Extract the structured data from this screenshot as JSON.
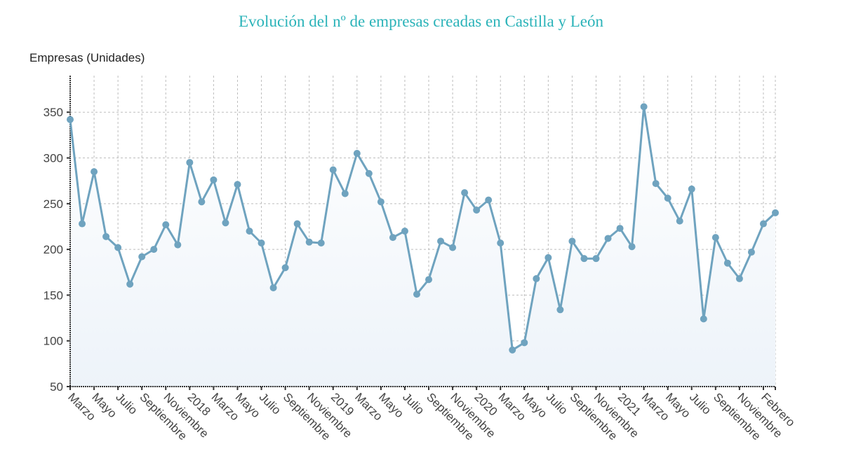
{
  "chart_data": {
    "type": "line",
    "title": "Evolución del nº de empresas creadas en Castilla y León",
    "ylabel": "Empresas (Unidades)",
    "xlabel": "",
    "ylim": [
      50,
      390
    ],
    "yticks": [
      50,
      100,
      150,
      200,
      250,
      300,
      350
    ],
    "grid": true,
    "legend": "none",
    "x_tick_labels": [
      "Marzo",
      "Mayo",
      "Julio",
      "Septiembre",
      "Noviembre",
      "2018",
      "Marzo",
      "Mayo",
      "Julio",
      "Septiembre",
      "Noviembre",
      "2019",
      "Marzo",
      "Mayo",
      "Julio",
      "Septiembre",
      "Noviembre",
      "2020",
      "Marzo",
      "Mayo",
      "Julio",
      "Septiembre",
      "Noviembre",
      "2021",
      "Marzo",
      "Mayo",
      "Julio",
      "Septiembre",
      "Noviembre",
      "Febrero"
    ],
    "x": [
      "2017-03",
      "2017-04",
      "2017-05",
      "2017-06",
      "2017-07",
      "2017-08",
      "2017-09",
      "2017-10",
      "2017-11",
      "2017-12",
      "2018-01",
      "2018-02",
      "2018-03",
      "2018-04",
      "2018-05",
      "2018-06",
      "2018-07",
      "2018-08",
      "2018-09",
      "2018-10",
      "2018-11",
      "2018-12",
      "2019-01",
      "2019-02",
      "2019-03",
      "2019-04",
      "2019-05",
      "2019-06",
      "2019-07",
      "2019-08",
      "2019-09",
      "2019-10",
      "2019-11",
      "2019-12",
      "2020-01",
      "2020-02",
      "2020-03",
      "2020-04",
      "2020-05",
      "2020-06",
      "2020-07",
      "2020-08",
      "2020-09",
      "2020-10",
      "2020-11",
      "2020-12",
      "2021-01",
      "2021-02",
      "2021-03",
      "2021-04",
      "2021-05",
      "2021-06",
      "2021-07",
      "2021-08",
      "2021-09",
      "2021-10",
      "2021-11",
      "2021-12",
      "2022-01",
      "2022-02"
    ],
    "series": [
      {
        "name": "Empresas creadas",
        "color": "#6fa3bf",
        "values": [
          342,
          228,
          285,
          214,
          202,
          162,
          192,
          200,
          227,
          205,
          295,
          252,
          276,
          229,
          271,
          220,
          207,
          158,
          180,
          228,
          208,
          207,
          287,
          261,
          305,
          283,
          252,
          213,
          220,
          151,
          167,
          209,
          202,
          262,
          243,
          254,
          207,
          90,
          98,
          168,
          191,
          134,
          209,
          190,
          190,
          212,
          223,
          203,
          356,
          272,
          256,
          231,
          266,
          124,
          213,
          185,
          168,
          197,
          228,
          240
        ]
      }
    ]
  }
}
